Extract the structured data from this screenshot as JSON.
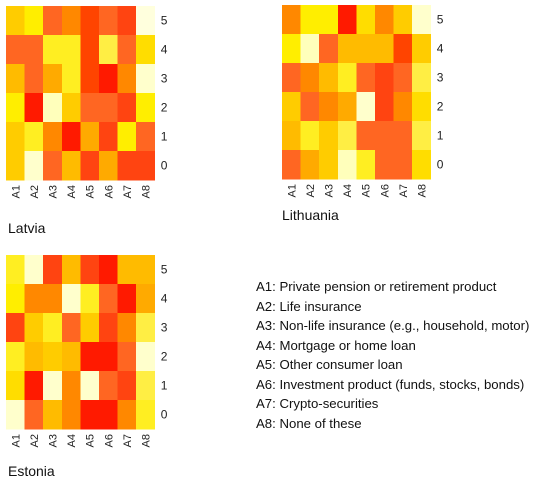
{
  "legend": [
    "A1: Private pension or retirement product",
    "A2: Life insurance",
    "A3: Non-life insurance (e.g., household, motor)",
    "A4: Mortgage or home loan",
    "A5: Other consumer loan",
    "A6: Investment product (funds, stocks, bonds)",
    "A7: Crypto-securities",
    "A8: None of these"
  ],
  "chart_data": [
    {
      "type": "heatmap",
      "title": "Latvia",
      "x_categories": [
        "A1",
        "A2",
        "A3",
        "A4",
        "A5",
        "A6",
        "A7",
        "A8"
      ],
      "y_categories": [
        "5",
        "4",
        "3",
        "2",
        "1",
        "0"
      ],
      "colors": [
        [
          "#ffcc00",
          "#ffee00",
          "#ff6622",
          "#ff8800",
          "#ff4400",
          "#ff6622",
          "#ff4411",
          "#ffffdd"
        ],
        [
          "#ff6622",
          "#ff6622",
          "#ffee22",
          "#ffee22",
          "#ff4400",
          "#ffee44",
          "#ff6622",
          "#ffdd00"
        ],
        [
          "#ffbb00",
          "#ff6622",
          "#ffaa00",
          "#ffee22",
          "#ff4400",
          "#ff1a00",
          "#ff8800",
          "#ffffcc"
        ],
        [
          "#ffee00",
          "#ff1a00",
          "#ffffbb",
          "#ffcc00",
          "#ff6622",
          "#ff6622",
          "#ff4411",
          "#ffee00"
        ],
        [
          "#ffcc00",
          "#ffee22",
          "#ff8800",
          "#ff1a00",
          "#ffaa00",
          "#ff4411",
          "#ffee00",
          "#ff6622"
        ],
        [
          "#ffcc00",
          "#ffffcc",
          "#ff6622",
          "#ffbb00",
          "#ff4411",
          "#ffaa00",
          "#ff4411",
          "#ff4411"
        ]
      ]
    },
    {
      "type": "heatmap",
      "title": "Lithuania",
      "x_categories": [
        "A1",
        "A2",
        "A3",
        "A4",
        "A5",
        "A6",
        "A7",
        "A8"
      ],
      "y_categories": [
        "5",
        "4",
        "3",
        "2",
        "1",
        "0"
      ],
      "colors": [
        [
          "#ff8800",
          "#ffee00",
          "#ffee00",
          "#ff1a00",
          "#ffdd00",
          "#ff8800",
          "#ffcc00",
          "#ffffcc"
        ],
        [
          "#ffee00",
          "#ffffbb",
          "#ff6622",
          "#ffbb00",
          "#ffbb00",
          "#ffbb00",
          "#ff4400",
          "#ffcc00"
        ],
        [
          "#ff6622",
          "#ff8800",
          "#ffbb00",
          "#ffee22",
          "#ff6622",
          "#ff4411",
          "#ff6622",
          "#ffee44"
        ],
        [
          "#ffcc00",
          "#ff6622",
          "#ff8800",
          "#ffaa00",
          "#ffffcc",
          "#ff4411",
          "#ff8800",
          "#ffdd00"
        ],
        [
          "#ffbb00",
          "#ffee22",
          "#ffcc00",
          "#ffee44",
          "#ff6622",
          "#ff6622",
          "#ff6622",
          "#ffee44"
        ],
        [
          "#ff6622",
          "#ffaa00",
          "#ffcc00",
          "#ffffbb",
          "#ffee22",
          "#ff6622",
          "#ff6622",
          "#ffdd00"
        ]
      ]
    },
    {
      "type": "heatmap",
      "title": "Estonia",
      "x_categories": [
        "A1",
        "A2",
        "A3",
        "A4",
        "A5",
        "A6",
        "A7",
        "A8"
      ],
      "y_categories": [
        "5",
        "4",
        "3",
        "2",
        "1",
        "0"
      ],
      "colors": [
        [
          "#ffee22",
          "#ffffcc",
          "#ff4411",
          "#ffbb00",
          "#ff4411",
          "#ff1a00",
          "#ffbb00",
          "#ffbb00"
        ],
        [
          "#ffee00",
          "#ff8800",
          "#ff8800",
          "#ffffcc",
          "#ffee22",
          "#ff6622",
          "#ff1a00",
          "#ffaa00"
        ],
        [
          "#ff4411",
          "#ffcc00",
          "#ffee22",
          "#ff6622",
          "#ffcc00",
          "#ff4411",
          "#ff8800",
          "#ffee44"
        ],
        [
          "#ffee22",
          "#ffbb00",
          "#ffcc00",
          "#ffbb00",
          "#ff1a00",
          "#ff1a00",
          "#ff6622",
          "#ffffcc"
        ],
        [
          "#ffdd00",
          "#ff1a00",
          "#ffffcc",
          "#ff8800",
          "#ffffcc",
          "#ff6622",
          "#ff4411",
          "#ffee44"
        ],
        [
          "#ffffcc",
          "#ff6622",
          "#ffbb00",
          "#ff8800",
          "#ff1a00",
          "#ff1a00",
          "#ff8800",
          "#ffee22"
        ]
      ]
    }
  ]
}
